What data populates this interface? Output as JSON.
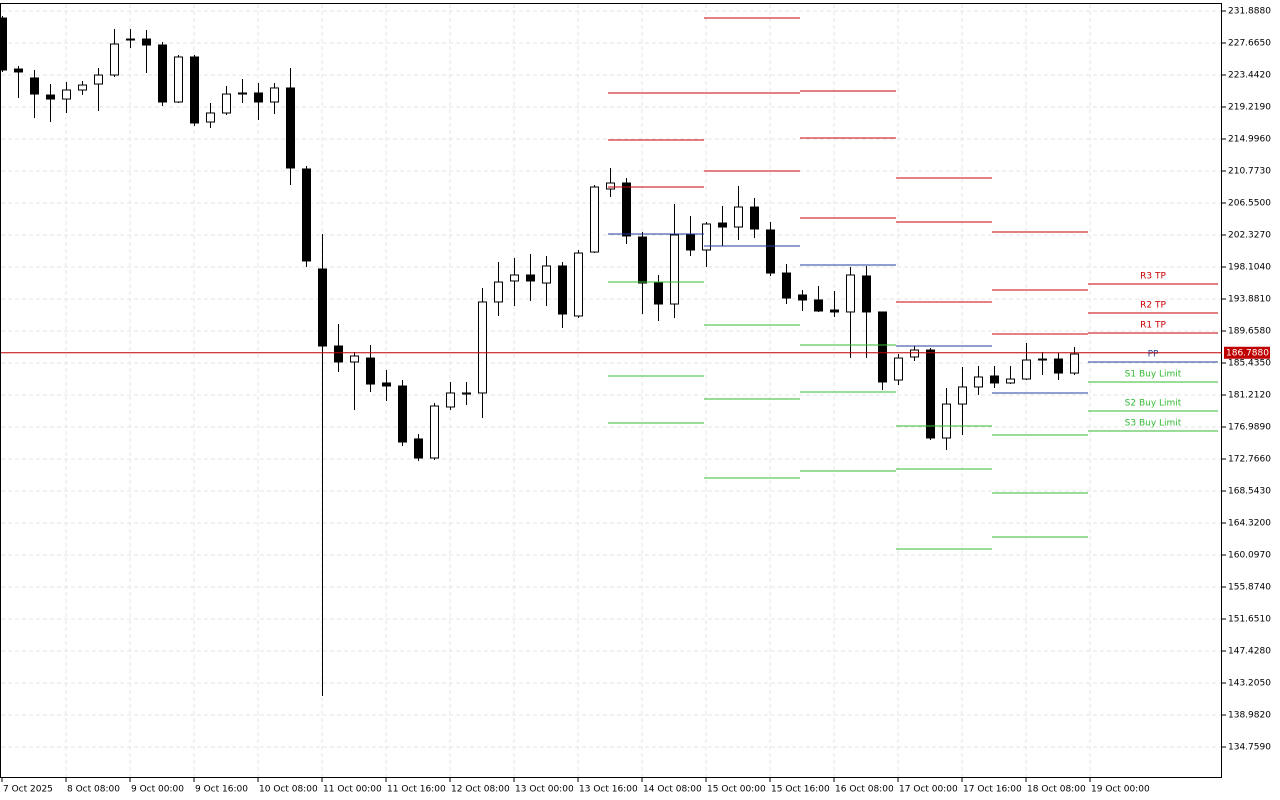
{
  "chart_data": {
    "type": "candlestick",
    "categories": [
      "7 Oct 2025",
      null,
      null,
      null,
      "8 Oct 08:00",
      null,
      null,
      null,
      "9 Oct 00:00",
      null,
      null,
      null,
      "9 Oct 16:00",
      null,
      null,
      null,
      "10 Oct 08:00",
      null,
      null,
      null,
      "11 Oct 00:00",
      null,
      null,
      null,
      "11 Oct 16:00",
      null,
      null,
      null,
      "12 Oct 08:00",
      null,
      null,
      null,
      "13 Oct 00:00",
      null,
      null,
      null,
      "13 Oct 16:00",
      null,
      null,
      null,
      "14 Oct 08:00",
      null,
      null,
      null,
      "15 Oct 00:00",
      null,
      null,
      null,
      "15 Oct 16:00",
      null,
      null,
      null,
      "16 Oct 08:00",
      null,
      null,
      null,
      "17 Oct 00:00",
      null,
      null,
      null,
      "17 Oct 16:00",
      null,
      null,
      null,
      "18 Oct 08:00",
      null,
      null,
      null,
      "19 Oct 00:00"
    ],
    "open": [
      230.96,
      224.23,
      223.05,
      220.8,
      220.27,
      221.46,
      222.25,
      223.44,
      228.19,
      228.19,
      227.4,
      219.88,
      225.82,
      217.24,
      218.43,
      220.93,
      221.07,
      219.88,
      221.73,
      211.04,
      197.84,
      187.68,
      185.57,
      186.09,
      182.8,
      182.4,
      175.41,
      172.9,
      179.63,
      181.34,
      181.48,
      193.49,
      196.26,
      197.05,
      195.99,
      198.24,
      191.64,
      200.08,
      208.4,
      209.19,
      202.06,
      195.99,
      193.22,
      202.33,
      200.35,
      203.91,
      203.38,
      206.02,
      202.99,
      197.31,
      194.41,
      193.75,
      192.43,
      192.17,
      196.92,
      192.17,
      183.19,
      186.23,
      187.15,
      175.54,
      180.02,
      182.27,
      183.72,
      182.8,
      183.32,
      185.83,
      185.96,
      184.11,
      null
    ],
    "high": [
      231.23,
      224.63,
      224.1,
      222.25,
      222.52,
      222.65,
      224.37,
      229.51,
      229.51,
      229.38,
      227.8,
      226.08,
      226.08,
      219.75,
      221.99,
      222.91,
      222.39,
      222.39,
      224.37,
      211.43,
      202.46,
      190.58,
      186.89,
      187.81,
      184.51,
      183.19,
      176.07,
      180.16,
      182.93,
      182.93,
      195.33,
      198.76,
      199.29,
      199.82,
      199.56,
      198.76,
      200.35,
      208.93,
      211.17,
      209.85,
      202.72,
      197.05,
      206.42,
      204.83,
      204.04,
      206.15,
      208.79,
      207.21,
      204.04,
      198.5,
      195.07,
      195.6,
      194.94,
      198.1,
      198.24,
      192.17,
      186.62,
      187.68,
      187.41,
      182.14,
      184.91,
      185.04,
      185.04,
      185.04,
      188.07,
      186.89,
      186.75,
      187.55,
      null
    ],
    "low": [
      223.84,
      220.41,
      217.77,
      217.24,
      218.43,
      220.8,
      218.69,
      223.18,
      227.01,
      223.71,
      219.35,
      219.75,
      216.71,
      216.45,
      218.16,
      219.75,
      217.5,
      218.3,
      208.93,
      198.1,
      141.49,
      184.25,
      179.23,
      181.61,
      180.42,
      174.48,
      172.5,
      172.63,
      179.23,
      179.89,
      178.18,
      191.64,
      192.96,
      193.62,
      192.96,
      190.05,
      191.37,
      199.95,
      207.34,
      201.14,
      191.9,
      190.98,
      191.37,
      199.56,
      198.1,
      200.88,
      201.67,
      201.93,
      196.92,
      193.22,
      192.3,
      192.17,
      191.51,
      186.09,
      186.09,
      181.87,
      182.53,
      185.7,
      175.27,
      173.95,
      175.93,
      181.21,
      182.14,
      182.66,
      183.19,
      183.85,
      183.19,
      183.85,
      null
    ],
    "close": [
      224.1,
      223.84,
      220.93,
      220.27,
      221.46,
      222.12,
      223.44,
      227.53,
      228.06,
      227.4,
      219.88,
      225.82,
      217.11,
      218.43,
      220.93,
      221.07,
      219.88,
      221.73,
      211.17,
      198.9,
      187.68,
      185.57,
      186.36,
      182.66,
      182.4,
      175.01,
      172.9,
      179.76,
      181.48,
      181.48,
      193.49,
      196.12,
      197.05,
      196.26,
      198.24,
      191.9,
      199.95,
      208.66,
      209.19,
      202.2,
      195.99,
      193.22,
      202.33,
      200.35,
      203.78,
      203.38,
      206.02,
      203.12,
      197.31,
      194.01,
      193.75,
      192.3,
      192.17,
      197.05,
      192.17,
      182.93,
      186.09,
      187.15,
      175.54,
      180.02,
      182.27,
      183.59,
      182.8,
      183.32,
      185.83,
      185.96,
      184.11,
      186.62,
      null
    ],
    "up_color": "#ffffff",
    "down_color": "#000000",
    "ylim": [
      130.67,
      232.944
    ],
    "yticks": [
      {
        "value": 231.888,
        "label": "231.8880"
      },
      {
        "value": 227.665,
        "label": "227.6650"
      },
      {
        "value": 223.442,
        "label": "223.4420"
      },
      {
        "value": 219.219,
        "label": "219.2190"
      },
      {
        "value": 214.996,
        "label": "214.9960"
      },
      {
        "value": 210.773,
        "label": "210.7730"
      },
      {
        "value": 206.55,
        "label": "206.5500"
      },
      {
        "value": 202.327,
        "label": "202.3270"
      },
      {
        "value": 198.104,
        "label": "198.1040"
      },
      {
        "value": 193.881,
        "label": "193.8810"
      },
      {
        "value": 189.658,
        "label": "189.6580"
      },
      {
        "value": 185.435,
        "label": "185.4350"
      },
      {
        "value": 181.212,
        "label": "181.2120"
      },
      {
        "value": 176.989,
        "label": "176.9890"
      },
      {
        "value": 172.766,
        "label": "172.7660"
      },
      {
        "value": 168.543,
        "label": "168.5430"
      },
      {
        "value": 164.32,
        "label": "164.3200"
      },
      {
        "value": 160.097,
        "label": "160.0970"
      },
      {
        "value": 155.874,
        "label": "155.8740"
      },
      {
        "value": 151.651,
        "label": "151.6510"
      },
      {
        "value": 147.428,
        "label": "147.4280"
      },
      {
        "value": 143.205,
        "label": "143.2050"
      },
      {
        "value": 138.982,
        "label": "138.9820"
      },
      {
        "value": 134.759,
        "label": "134.7590"
      }
    ],
    "grid": true,
    "last_price": {
      "value": 186.788,
      "label": "186.7880",
      "color": "#c00000"
    },
    "pivots": {
      "names": [
        "R3 TP",
        "R2 TP",
        "R1 TP",
        "PP",
        "S1 Buy Limit",
        "S2 Buy Limit",
        "S3 Buy Limit"
      ],
      "colors": [
        "#cc0000",
        "#cc0000",
        "#cc0000",
        "#1f3f9f",
        "#33bb33",
        "#33bb33",
        "#33bb33"
      ],
      "days": [
        [
          221.07,
          214.86,
          208.66,
          202.46,
          196.12,
          183.72,
          177.52
        ],
        [
          230.96,
          221.07,
          210.77,
          200.88,
          190.45,
          180.68,
          170.26
        ],
        [
          221.33,
          215.13,
          204.57,
          198.37,
          187.81,
          181.61,
          171.18
        ],
        [
          209.85,
          204.04,
          193.49,
          187.68,
          177.12,
          171.44,
          160.89
        ],
        [
          202.72,
          195.07,
          189.26,
          181.48,
          175.93,
          168.28,
          162.47
        ],
        [
          195.86,
          192.03,
          189.39,
          185.57,
          182.93,
          179.1,
          176.46
        ]
      ]
    }
  }
}
